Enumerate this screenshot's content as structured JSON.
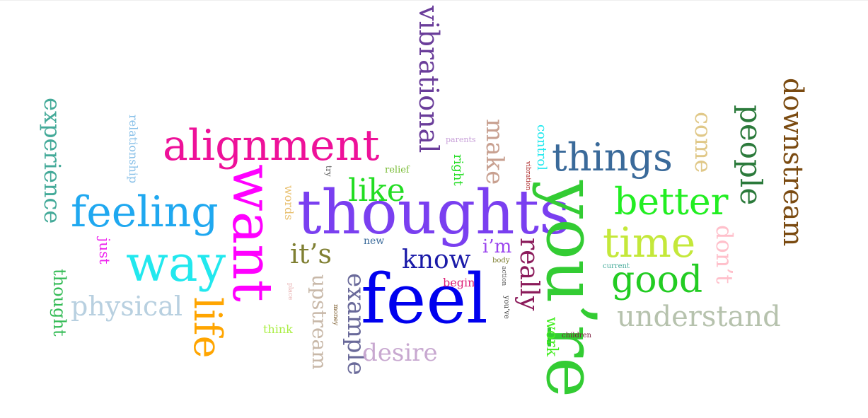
{
  "word_cloud": {
    "words": [
      {
        "text": "feel",
        "color": "#0000ee",
        "orientation": "horizontal"
      },
      {
        "text": "thoughts",
        "color": "#7a3ff0",
        "orientation": "horizontal"
      },
      {
        "text": "you’re",
        "color": "#33cc33",
        "orientation": "vertical"
      },
      {
        "text": "want",
        "color": "#ff00ff",
        "orientation": "vertical"
      },
      {
        "text": "way",
        "color": "#22e8ee",
        "orientation": "horizontal"
      },
      {
        "text": "feeling",
        "color": "#1fa8f0",
        "orientation": "horizontal"
      },
      {
        "text": "alignment",
        "color": "#ee1199",
        "orientation": "horizontal"
      },
      {
        "text": "vibrational",
        "color": "#6a3d9a",
        "orientation": "vertical"
      },
      {
        "text": "life",
        "color": "#ffa500",
        "orientation": "vertical"
      },
      {
        "text": "things",
        "color": "#3a6a9a",
        "orientation": "horizontal"
      },
      {
        "text": "better",
        "color": "#22ee22",
        "orientation": "horizontal"
      },
      {
        "text": "time",
        "color": "#c4e83a",
        "orientation": "horizontal"
      },
      {
        "text": "people",
        "color": "#2b7a3b",
        "orientation": "vertical"
      },
      {
        "text": "downstream",
        "color": "#7a4a10",
        "orientation": "vertical"
      },
      {
        "text": "good",
        "color": "#22cc22",
        "orientation": "horizontal"
      },
      {
        "text": "understand",
        "color": "#b6c2ad",
        "orientation": "horizontal"
      },
      {
        "text": "example",
        "color": "#6a6a9a",
        "orientation": "vertical"
      },
      {
        "text": "upstream",
        "color": "#c8b8a8",
        "orientation": "vertical"
      },
      {
        "text": "experience",
        "color": "#44aa99",
        "orientation": "vertical"
      },
      {
        "text": "physical",
        "color": "#b8d0e0",
        "orientation": "horizontal"
      },
      {
        "text": "really",
        "color": "#8b1a5a",
        "orientation": "vertical"
      },
      {
        "text": "desire",
        "color": "#c8a8d0",
        "orientation": "horizontal"
      },
      {
        "text": "know",
        "color": "#1a1aa8",
        "orientation": "horizontal"
      },
      {
        "text": "like",
        "color": "#22dd22",
        "orientation": "horizontal"
      },
      {
        "text": "it’s",
        "color": "#808033",
        "orientation": "horizontal"
      },
      {
        "text": "make",
        "color": "#c8a090",
        "orientation": "vertical"
      },
      {
        "text": "come",
        "color": "#e0c888",
        "orientation": "vertical"
      },
      {
        "text": "don’t",
        "color": "#ffc0cb",
        "orientation": "vertical"
      },
      {
        "text": "thought",
        "color": "#33bb55",
        "orientation": "vertical"
      },
      {
        "text": "i’m",
        "color": "#9a44ee",
        "orientation": "horizontal"
      },
      {
        "text": "work",
        "color": "#44ee22",
        "orientation": "vertical"
      },
      {
        "text": "right",
        "color": "#22dd22",
        "orientation": "vertical"
      },
      {
        "text": "control",
        "color": "#22e8ee",
        "orientation": "vertical"
      },
      {
        "text": "relationship",
        "color": "#88c0e8",
        "orientation": "vertical"
      },
      {
        "text": "words",
        "color": "#e8c070",
        "orientation": "vertical"
      },
      {
        "text": "just",
        "color": "#ee22ee",
        "orientation": "vertical"
      },
      {
        "text": "begin",
        "color": "#dd2277",
        "orientation": "horizontal"
      },
      {
        "text": "think",
        "color": "#aaee44",
        "orientation": "horizontal"
      },
      {
        "text": "new",
        "color": "#3a6a9a",
        "orientation": "horizontal"
      },
      {
        "text": "relief",
        "color": "#77bb33",
        "orientation": "horizontal"
      },
      {
        "text": "parents",
        "color": "#c8a0d8",
        "orientation": "horizontal"
      },
      {
        "text": "try",
        "color": "#555555",
        "orientation": "vertical"
      },
      {
        "text": "vibration",
        "color": "#aa2222",
        "orientation": "vertical"
      },
      {
        "text": "current",
        "color": "#44aa99",
        "orientation": "horizontal"
      },
      {
        "text": "children",
        "color": "#7a1a3a",
        "orientation": "horizontal"
      },
      {
        "text": "body",
        "color": "#808033",
        "orientation": "horizontal"
      },
      {
        "text": "action",
        "color": "#555555",
        "orientation": "vertical"
      },
      {
        "text": "you’ve",
        "color": "#333333",
        "orientation": "vertical"
      },
      {
        "text": "money",
        "color": "#7a5a2a",
        "orientation": "vertical"
      },
      {
        "text": "place",
        "color": "#e8b0b0",
        "orientation": "vertical"
      }
    ]
  }
}
